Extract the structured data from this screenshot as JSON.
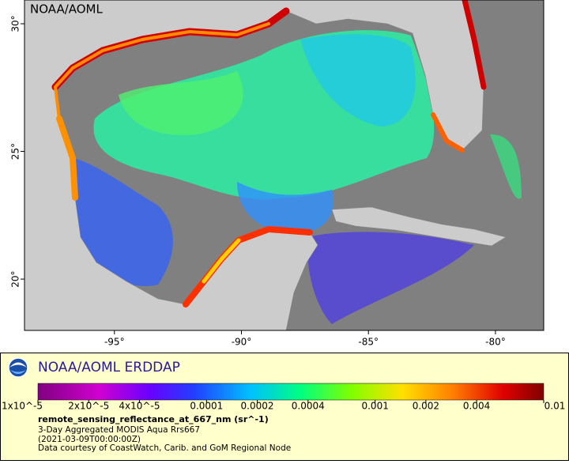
{
  "map": {
    "watermark": "NOAA/AOML",
    "lon_range": [
      -98.54,
      -78.1
    ],
    "lat_range": [
      17.99,
      30.93
    ],
    "lon_ticks": [
      {
        "value": -95,
        "label": "-95°"
      },
      {
        "value": -90,
        "label": "-90°"
      },
      {
        "value": -85,
        "label": "-85°"
      },
      {
        "value": -80,
        "label": "-80°"
      }
    ],
    "lat_ticks": [
      {
        "value": 30,
        "label": "30°"
      },
      {
        "value": 25,
        "label": "25°"
      },
      {
        "value": 20,
        "label": "20°"
      }
    ]
  },
  "legend": {
    "brand": "NOAA/AOML ERDDAP",
    "colorbar": {
      "range": [
        1e-05,
        0.01
      ],
      "scale": "log",
      "ticks": [
        {
          "value": 1e-05,
          "label": "1x10^-5"
        },
        {
          "value": 2e-05,
          "label": "2x10^-5"
        },
        {
          "value": 4e-05,
          "label": "4x10^-5"
        },
        0.0001,
        0.0002,
        0.0004,
        0.001,
        0.002,
        0.004,
        0.01
      ]
    },
    "variable": "remote_sensing_reflectance_at_667_nm (sr^-1)",
    "lines": [
      "3-Day Aggregated MODIS Aqua Rrs667",
      "(2021-03-09T00:00:00Z)",
      "Data courtesy of CoastWatch, Carib. and GoM Regional Node"
    ]
  }
}
